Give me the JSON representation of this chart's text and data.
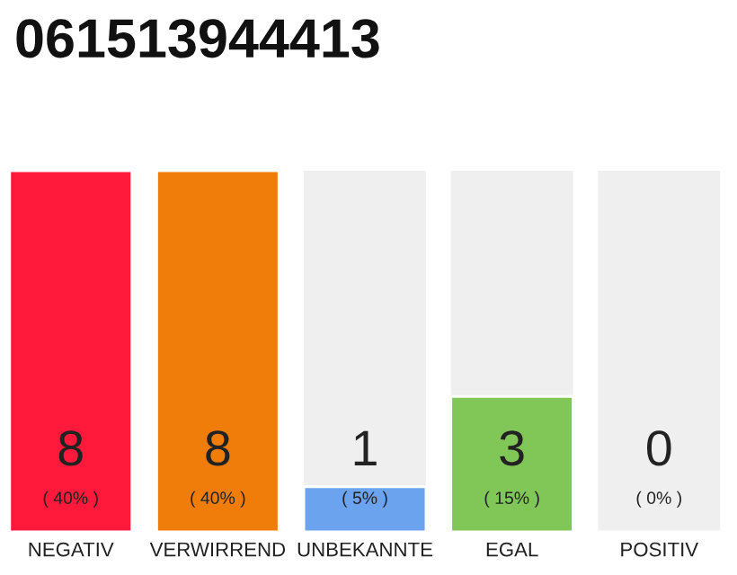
{
  "chart_data": {
    "type": "bar",
    "title": "061513944413",
    "categories": [
      "NEGATIV",
      "VERWIRREND",
      "UNBEKANNTE",
      "EGAL",
      "POSITIV"
    ],
    "values": [
      8,
      8,
      1,
      3,
      0
    ],
    "ylim": [
      0,
      8
    ],
    "colors": [
      "#ff1a3c",
      "#f07d0a",
      "#6ba3ee",
      "#80c757",
      null
    ],
    "data_labels": true,
    "annotations": [
      "( 40% )",
      "( 40% )",
      "( 5% )",
      "( 15% )",
      "( 0% )"
    ],
    "grid": false,
    "legend": false
  }
}
